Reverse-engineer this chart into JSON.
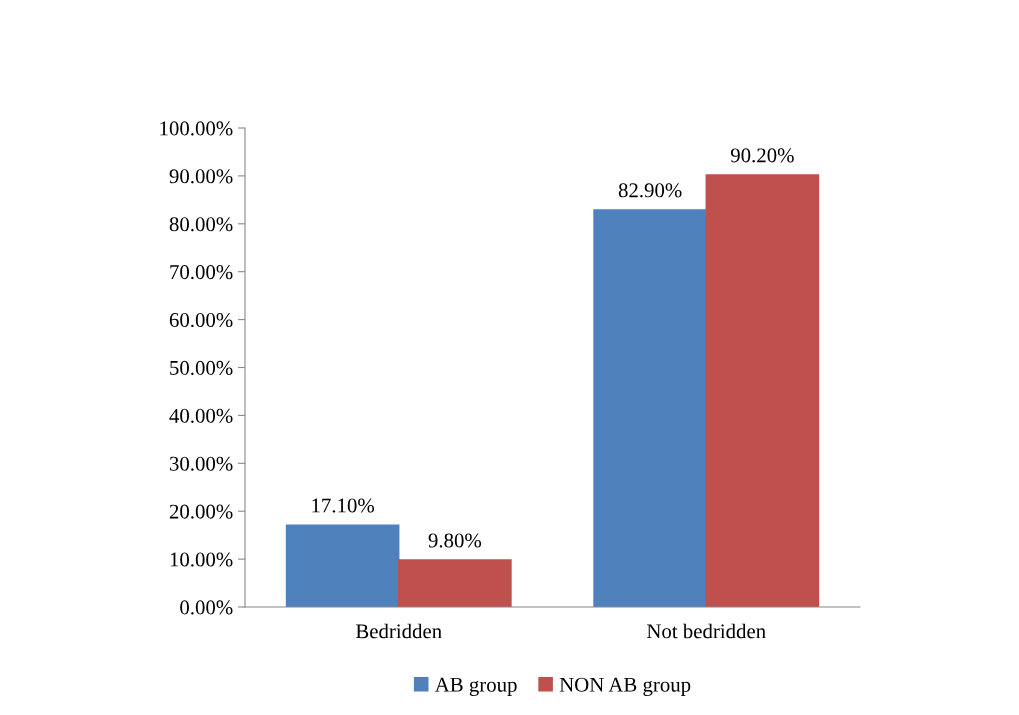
{
  "chart_data": {
    "type": "bar",
    "categories": [
      "Bedridden",
      "Not bedridden"
    ],
    "series": [
      {
        "name": "AB group",
        "color": "#4f81bd",
        "values": [
          17.1,
          82.9
        ],
        "value_labels": [
          "17.10%",
          "82.90%"
        ]
      },
      {
        "name": "NON AB group",
        "color": "#c0504d",
        "values": [
          9.8,
          90.2
        ],
        "value_labels": [
          "9.80%",
          "90.20%"
        ]
      }
    ],
    "ylim": [
      0,
      100
    ],
    "yticks": [
      {
        "value": 0,
        "label": "0.00%"
      },
      {
        "value": 10,
        "label": "10.00%"
      },
      {
        "value": 20,
        "label": "20.00%"
      },
      {
        "value": 30,
        "label": "30.00%"
      },
      {
        "value": 40,
        "label": "40.00%"
      },
      {
        "value": 50,
        "label": "50.00%"
      },
      {
        "value": 60,
        "label": "60.00%"
      },
      {
        "value": 70,
        "label": "70.00%"
      },
      {
        "value": 80,
        "label": "80.00%"
      },
      {
        "value": 90,
        "label": "90.00%"
      },
      {
        "value": 100,
        "label": "100.00%"
      }
    ],
    "grid": false,
    "legend": "bottom"
  }
}
